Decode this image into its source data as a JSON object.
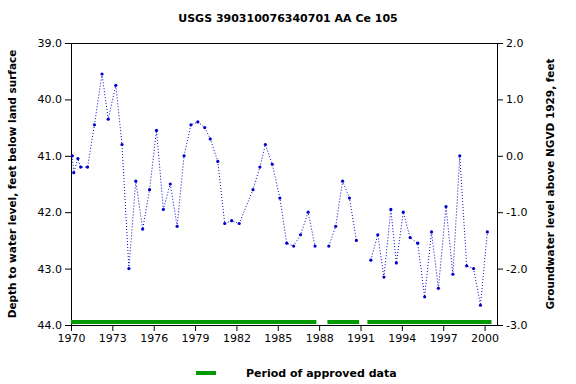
{
  "chart_data": {
    "type": "line",
    "title": "USGS 390310076340701 AA Ce 105",
    "y_label": "Depth to water level, feet below land surface",
    "y2_label": "Groundwater level above NGVD 1929, feet",
    "xlim": [
      1970,
      2000.9
    ],
    "xticks": [
      1970,
      1973,
      1976,
      1979,
      1982,
      1985,
      1988,
      1991,
      1994,
      1997,
      2000
    ],
    "ylim": [
      44,
      39
    ],
    "yticks": [
      {
        "value": 39,
        "label": "39.0"
      },
      {
        "value": 40,
        "label": "40.0"
      },
      {
        "value": 41,
        "label": "41.0"
      },
      {
        "value": 42,
        "label": "42.0"
      },
      {
        "value": 43,
        "label": "43.0"
      },
      {
        "value": 44,
        "label": "44.0"
      }
    ],
    "y2lim": [
      -3,
      2
    ],
    "y2ticks": [
      {
        "value": 2,
        "label": "2.0"
      },
      {
        "value": 1,
        "label": "1.0"
      },
      {
        "value": 0,
        "label": "0.0"
      },
      {
        "value": -1,
        "label": "-1.0"
      },
      {
        "value": -2,
        "label": "-2.0"
      },
      {
        "value": -3,
        "label": "-3.0"
      }
    ],
    "grid": false,
    "legend": "bottom",
    "series": [
      {
        "type": "line",
        "color": "#0000cc",
        "marker": "dot",
        "line_style": "dotted",
        "x": [
          1970.1,
          1970.2,
          1970.5,
          1970.7,
          1971.2,
          1971.7,
          1972.25,
          1972.7,
          1973.25,
          1973.7,
          1974.2,
          1974.7,
          1975.2,
          1975.7,
          1976.2,
          1976.7,
          1977.2,
          1977.7,
          1978.2,
          1978.7,
          1979.2,
          1979.7,
          1980.1,
          1980.65,
          1981.15,
          1981.65,
          1982.2,
          1983.2,
          1983.7,
          1984.1,
          1984.6,
          1985.15,
          1985.65,
          1986.15,
          1986.65,
          1987.2,
          1987.7,
          1988.2,
          1988.7,
          1989.2,
          1989.7,
          1990.2,
          1990.7,
          1991.2,
          1991.75,
          1992.25,
          1992.7,
          1993.2,
          1993.6,
          1994.1,
          1994.6,
          1995.15,
          1995.65,
          1996.15,
          1996.65,
          1997.2,
          1997.7,
          1998.2,
          1998.7,
          1999.2,
          1999.7,
          2000.2
        ],
        "values": [
          41.0,
          41.3,
          41.05,
          41.2,
          41.2,
          40.45,
          39.55,
          40.35,
          39.75,
          40.8,
          43.0,
          41.45,
          42.3,
          41.6,
          40.55,
          41.95,
          41.5,
          42.25,
          41.0,
          40.45,
          40.4,
          40.5,
          40.7,
          41.1,
          42.2,
          42.15,
          42.2,
          41.6,
          41.2,
          40.8,
          41.15,
          41.75,
          42.55,
          42.6,
          42.4,
          42.0,
          42.6,
          null,
          42.6,
          42.25,
          41.45,
          41.75,
          42.5,
          null,
          42.85,
          42.4,
          43.15,
          41.95,
          42.9,
          42.0,
          42.45,
          42.55,
          43.5,
          42.35,
          43.35,
          41.9,
          43.1,
          41.0,
          42.95,
          43.0,
          43.65,
          42.35
        ]
      },
      {
        "type": "range",
        "name": "Period of approved data",
        "color": "#009900",
        "periods": [
          {
            "start": 1970,
            "end": 1987.8
          },
          {
            "start": 1988.6,
            "end": 1990.9
          },
          {
            "start": 1991.5,
            "end": 2000.5
          }
        ]
      }
    ]
  }
}
